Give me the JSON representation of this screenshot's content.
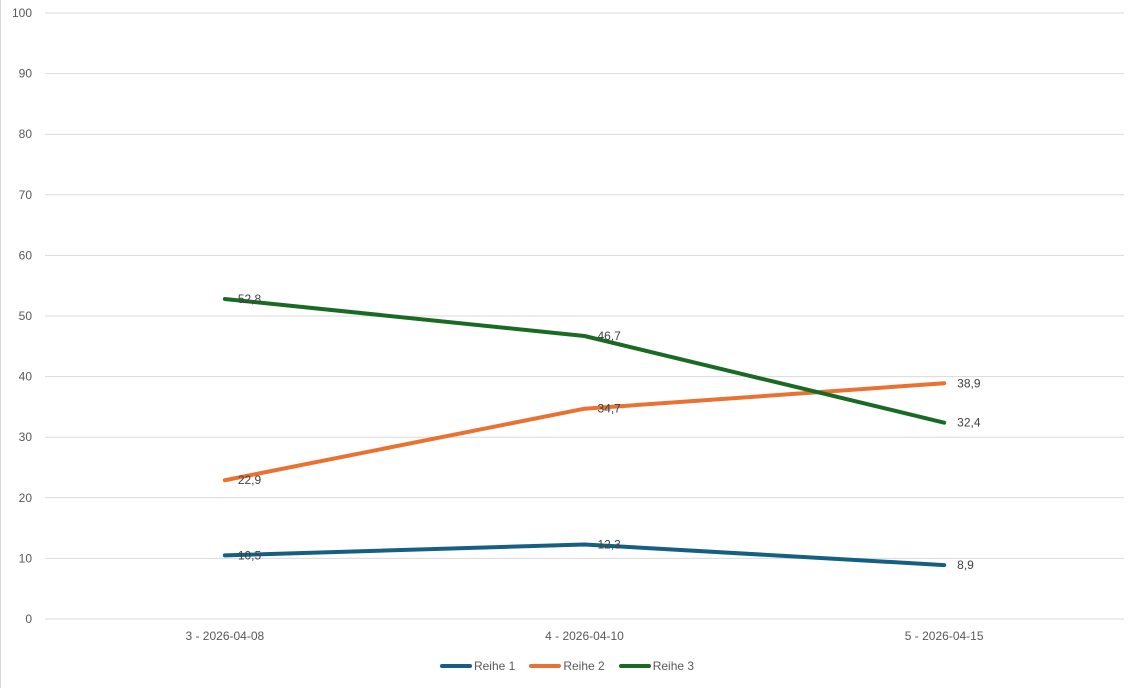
{
  "chart_data": {
    "type": "line",
    "title": "",
    "xlabel": "",
    "ylabel": "",
    "categories": [
      "3 - 2026-04-08",
      "4 - 2026-04-10",
      "5 - 2026-04-15"
    ],
    "series": [
      {
        "name": "Reihe 1",
        "color": "#156082",
        "values": [
          10.5,
          12.3,
          8.9
        ],
        "labels": [
          "10,5",
          "12,3",
          "8,9"
        ]
      },
      {
        "name": "Reihe 2",
        "color": "#E97132",
        "values": [
          22.9,
          34.7,
          38.9
        ],
        "labels": [
          "22,9",
          "34,7",
          "38,9"
        ]
      },
      {
        "name": "Reihe 3",
        "color": "#196B24",
        "values": [
          52.8,
          46.7,
          32.4
        ],
        "labels": [
          "52,8",
          "46,7",
          "32,4"
        ]
      }
    ],
    "ylim": [
      0,
      100
    ],
    "yticks": [
      "0",
      "10",
      "20",
      "30",
      "40",
      "50",
      "60",
      "70",
      "80",
      "90",
      "100"
    ],
    "grid": true,
    "legend_position": "bottom"
  },
  "legend": {
    "items": [
      {
        "label": "Reihe 1",
        "color": "#156082"
      },
      {
        "label": "Reihe 2",
        "color": "#E97132"
      },
      {
        "label": "Reihe 3",
        "color": "#196B24"
      }
    ]
  }
}
